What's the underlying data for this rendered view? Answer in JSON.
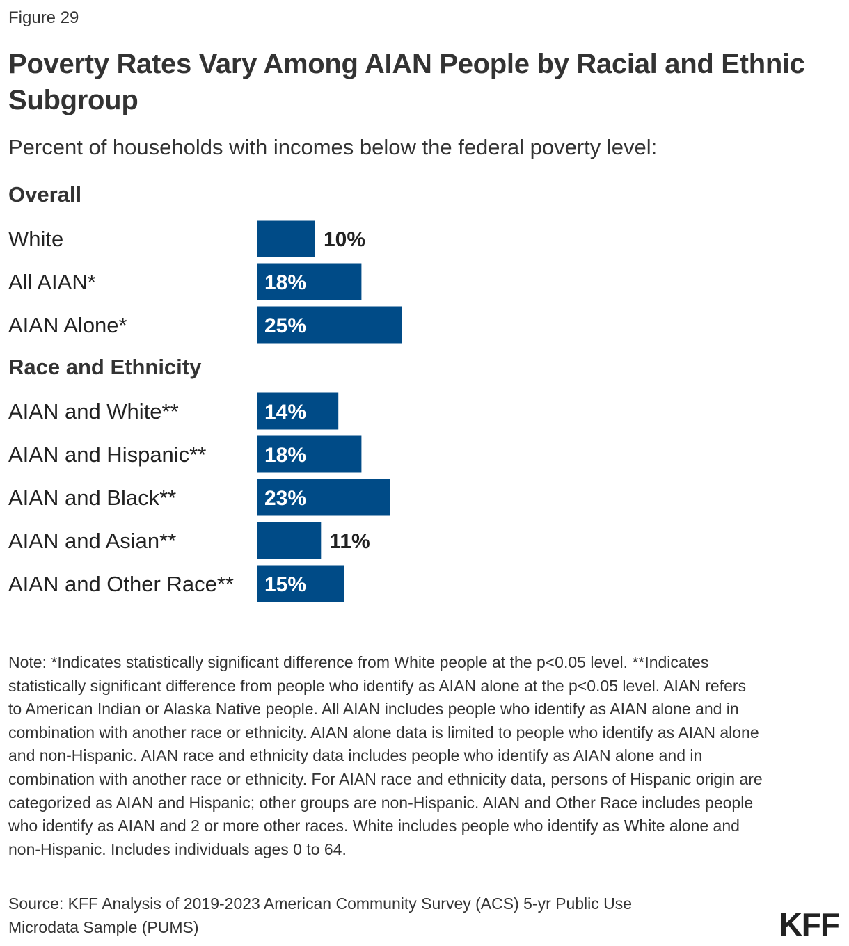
{
  "figure_label": "Figure 29",
  "title": "Poverty Rates Vary Among AIAN People by Racial and Ethnic Subgroup",
  "subtitle": "Percent of households with incomes below the federal poverty level:",
  "note": "Note: *Indicates statistically significant difference from White people at the p<0.05 level. **Indicates statistically significant difference from people who identify as AIAN alone at the p<0.05 level. AIAN refers to American Indian or Alaska Native people. All AIAN includes people who identify as AIAN alone and in combination with another race or ethnicity. AIAN alone data is limited to people who identify as AIAN alone and non-Hispanic. AIAN race and ethnicity data includes people who identify as AIAN alone and in combination with another race or ethnicity. For AIAN race and ethnicity data, persons of Hispanic origin are categorized as AIAN and Hispanic; other groups are non-Hispanic. AIAN and Other Race includes people who identify as AIAN and 2 or more other races. White includes people who identify as White alone and non-Hispanic. Includes individuals ages 0 to 64.",
  "source": "Source: KFF Analysis of 2019-2023 American Community Survey (ACS) 5-yr Public Use Microdata Sample (PUMS)",
  "logo": "KFF",
  "colors": {
    "bar": "#004b87",
    "label_inside": "#ffffff",
    "label_outside": "#222222"
  },
  "chart_data": {
    "type": "bar",
    "orientation": "horizontal",
    "value_suffix": "%",
    "groups": [
      {
        "name": "Overall",
        "categories": [
          "White",
          "All AIAN*",
          "AIAN Alone*"
        ],
        "values": [
          10,
          18,
          25
        ]
      },
      {
        "name": "Race and Ethnicity",
        "categories": [
          "AIAN and White**",
          "AIAN and Hispanic**",
          "AIAN and Black**",
          "AIAN and Asian**",
          "AIAN and Other Race**"
        ],
        "values": [
          14,
          18,
          23,
          11,
          15
        ]
      }
    ],
    "grid": false,
    "legend": false
  }
}
